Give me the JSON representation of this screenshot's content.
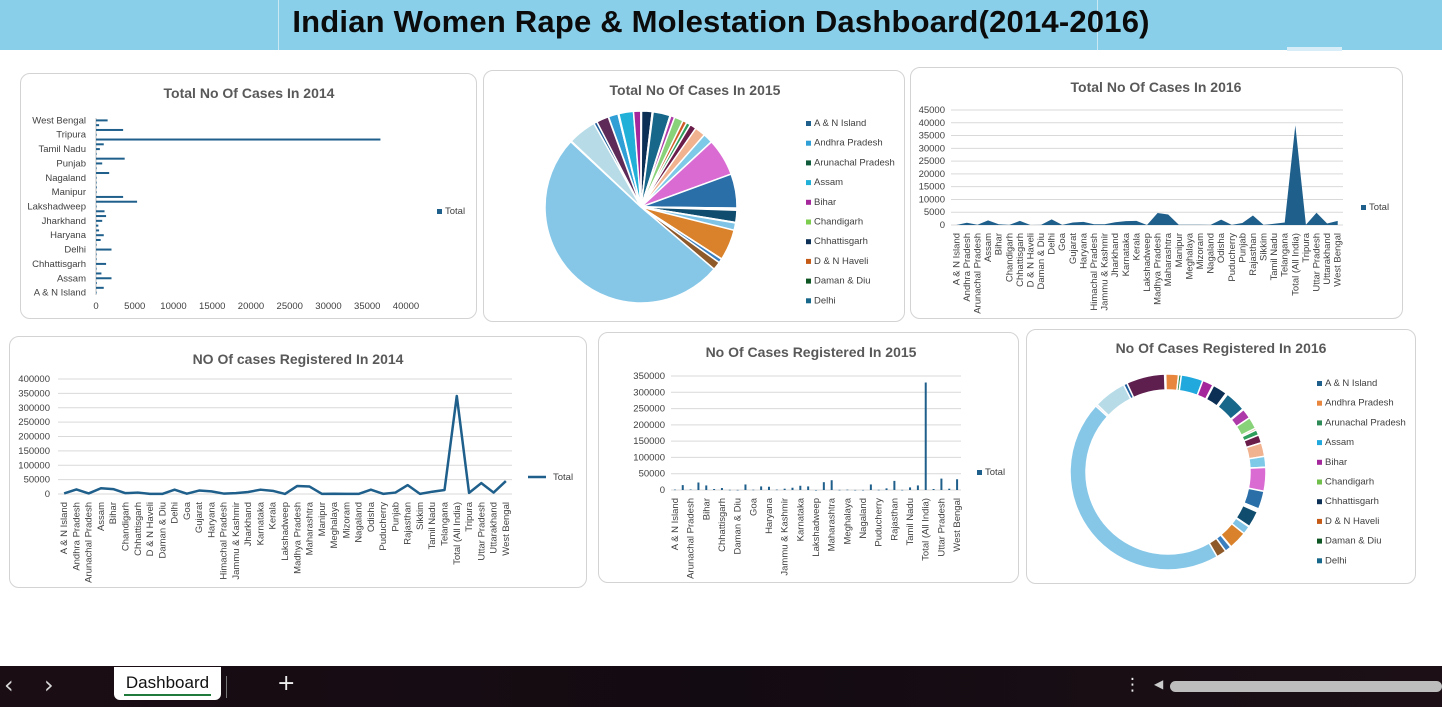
{
  "header": {
    "title": "Indian Women Rape & Molestation Dashboard(2014-2016)"
  },
  "charts": [
    {
      "id": "c2014bar",
      "title": "Total No Of Cases In 2014",
      "type": "bar",
      "categories": [
        "A & N Island",
        "Andhra Pradesh",
        "Arunachal Pradesh",
        "Assam",
        "Bihar",
        "Chandigarh",
        "Chhattisgarh",
        "D & N Haveli",
        "Daman & Diu",
        "Delhi",
        "Goa",
        "Gujarat",
        "Haryana",
        "Himachal Pradesh",
        "Jammu & Kashmir",
        "Jharkhand",
        "Karnataka",
        "Kerala",
        "Lakshadweep",
        "Madhya Pradesh",
        "Maharashtra",
        "Manipur",
        "Meghalaya",
        "Mizoram",
        "Nagaland",
        "Odisha",
        "Puducherry",
        "Punjab",
        "Rajasthan",
        "Sikkim",
        "Tamil Nadu",
        "Telangana",
        "Total (All India)",
        "Tripura",
        "Uttar Pradesh",
        "Uttarakhand",
        "West Bengal"
      ],
      "shown_category_labels": [
        "A & N Island",
        "Assam",
        "Chhattisgarh",
        "Delhi",
        "Haryana",
        "Jharkhand",
        "Lakshadweep",
        "Manipur",
        "Nagaland",
        "Punjab",
        "Tamil Nadu",
        "Tripura",
        "West Bengal"
      ],
      "values": [
        60,
        1000,
        100,
        2000,
        700,
        70,
        1300,
        40,
        40,
        2000,
        60,
        600,
        1000,
        400,
        300,
        800,
        1300,
        1100,
        5,
        5300,
        3500,
        40,
        100,
        80,
        20,
        1700,
        50,
        800,
        3700,
        30,
        500,
        1000,
        36700,
        80,
        3500,
        400,
        1500
      ],
      "xticks": [
        0,
        5000,
        10000,
        15000,
        20000,
        25000,
        30000,
        35000,
        40000
      ],
      "xlim": [
        0,
        40000
      ],
      "legend": "Total",
      "legend_position": "right",
      "color": "#1f5f8b"
    },
    {
      "id": "c2015pie",
      "title": "Total No Of Cases In 2015",
      "type": "pie",
      "values": [
        40,
        1200,
        100,
        1800,
        900,
        80,
        1300,
        60,
        50,
        2100,
        90,
        500,
        1100,
        500,
        500,
        800,
        1300,
        1200,
        5,
        4600,
        4200,
        40,
        100,
        80,
        30,
        1500,
        60,
        900,
        3800,
        30,
        500,
        1000,
        37000,
        80,
        3500,
        400,
        1500
      ],
      "legend_entries": [
        "A & N Island",
        "Andhra Pradesh",
        "Arunachal Pradesh",
        "Assam",
        "Bihar",
        "Chandigarh",
        "Chhattisgarh",
        "D & N Haveli",
        "Daman & Diu",
        "Delhi"
      ],
      "colors": [
        "#1f5f8b",
        "#2f9fd6",
        "#0f5a3a",
        "#21b0d8",
        "#a4279b",
        "#7ccc4d",
        "#0b2f55",
        "#c45a16",
        "#0d5624",
        "#16678a",
        "#e8a17c",
        "#ad3aa8",
        "#88d27a",
        "#cf5b26",
        "#2e9e5c",
        "#6b1d4a",
        "#f0b28f",
        "#7ec9e8",
        "#135c2b",
        "#d96bd2",
        "#2a6fa8",
        "#4ab3d4",
        "#1c4e7a",
        "#c99360",
        "#5dbb6a",
        "#0f4c6e",
        "#a24d9c",
        "#7fc4e6",
        "#d9822b",
        "#245f3c",
        "#3a7fbf",
        "#8f5a2a",
        "#86c7e8",
        "#c7b4e0",
        "#b7dce8",
        "#205f9b",
        "#5e2a58"
      ],
      "legend_position": "right"
    },
    {
      "id": "c2016area",
      "title": "Total No Of Cases In 2016",
      "type": "area",
      "categories": [
        "A & N Island",
        "Andhra Pradesh",
        "Arunachal Pradesh",
        "Assam",
        "Bihar",
        "Chandigarh",
        "Chhattisgarh",
        "D & N Haveli",
        "Daman & Diu",
        "Delhi",
        "Goa",
        "Gujarat",
        "Haryana",
        "Himachal Pradesh",
        "Jammu & Kashmir",
        "Jharkhand",
        "Karnataka",
        "Kerala",
        "Lakshadweep",
        "Madhya Pradesh",
        "Maharashtra",
        "Manipur",
        "Meghalaya",
        "Mizoram",
        "Nagaland",
        "Odisha",
        "Puducherry",
        "Punjab",
        "Rajasthan",
        "Sikkim",
        "Tamil Nadu",
        "Telangana",
        "Total (All India)",
        "Tripura",
        "Uttar Pradesh",
        "Uttarakhand",
        "West Bengal"
      ],
      "values": [
        20,
        900,
        100,
        1800,
        300,
        70,
        1600,
        20,
        30,
        2200,
        40,
        1000,
        1200,
        300,
        300,
        1100,
        1500,
        1600,
        0,
        4700,
        4100,
        100,
        100,
        80,
        30,
        2100,
        50,
        800,
        3700,
        30,
        500,
        1000,
        39000,
        100,
        4800,
        600,
        1600
      ],
      "yticks": [
        0,
        5000,
        10000,
        15000,
        20000,
        25000,
        30000,
        35000,
        40000,
        45000
      ],
      "ylim": [
        0,
        45000
      ],
      "legend": "Total",
      "legend_position": "right",
      "color": "#1f5f8b"
    },
    {
      "id": "r2014line",
      "title": "NO Of cases Registered In 2014",
      "type": "line",
      "categories": [
        "A & N Island",
        "Andhra Pradesh",
        "Arunachal Pradesh",
        "Assam",
        "Bihar",
        "Chandigarh",
        "Chhattisgarh",
        "D & N Haveli",
        "Daman & Diu",
        "Delhi",
        "Goa",
        "Gujarat",
        "Haryana",
        "Himachal Pradesh",
        "Jammu & Kashmir",
        "Jharkhand",
        "Karnataka",
        "Kerala",
        "Lakshadweep",
        "Madhya Pradesh",
        "Maharashtra",
        "Manipur",
        "Meghalaya",
        "Mizoram",
        "Nagaland",
        "Odisha",
        "Puducherry",
        "Punjab",
        "Rajasthan",
        "Sikkim",
        "Tamil Nadu",
        "Telangana",
        "Total (All India)",
        "Tripura",
        "Uttar Pradesh",
        "Uttarakhand",
        "West Bengal"
      ],
      "values": [
        2000,
        16000,
        2000,
        20000,
        17000,
        3000,
        5000,
        500,
        300,
        15000,
        1000,
        12000,
        9000,
        1500,
        3000,
        7000,
        15000,
        11000,
        100,
        28000,
        26000,
        500,
        900,
        300,
        300,
        15000,
        500,
        5000,
        31000,
        400,
        8000,
        14000,
        341000,
        4000,
        38000,
        5000,
        45000
      ],
      "yticks": [
        0,
        50000,
        100000,
        150000,
        200000,
        250000,
        300000,
        350000,
        400000
      ],
      "ylim": [
        0,
        400000
      ],
      "legend": "Total",
      "legend_position": "right",
      "color": "#1f5f8b"
    },
    {
      "id": "r2015col",
      "title": "No Of Cases Registered In 2015",
      "type": "bar",
      "categories": [
        "A & N Island",
        "Andhra Pradesh",
        "Arunachal Pradesh",
        "Assam",
        "Bihar",
        "Chandigarh",
        "Chhattisgarh",
        "D & N Haveli",
        "Daman & Diu",
        "Delhi",
        "Goa",
        "Gujarat",
        "Haryana",
        "Himachal Pradesh",
        "Jammu & Kashmir",
        "Jharkhand",
        "Karnataka",
        "Kerala",
        "Lakshadweep",
        "Madhya Pradesh",
        "Maharashtra",
        "Manipur",
        "Meghalaya",
        "Mizoram",
        "Nagaland",
        "Odisha",
        "Puducherry",
        "Punjab",
        "Rajasthan",
        "Sikkim",
        "Tamil Nadu",
        "Telangana",
        "Total (All India)",
        "Tripura",
        "Uttar Pradesh",
        "Uttarakhand",
        "West Bengal"
      ],
      "shown_category_labels": [
        "A & N Island",
        "Arunachal Pradesh",
        "Bihar",
        "Chhattisgarh",
        "Daman & Diu",
        "Goa",
        "Haryana",
        "Jammu & Kashmir",
        "Karnataka",
        "Lakshadweep",
        "Maharashtra",
        "Meghalaya",
        "Nagaland",
        "Puducherry",
        "Rajasthan",
        "Tamil Nadu",
        "Total (All India)",
        "Uttar Pradesh",
        "West Bengal"
      ],
      "values": [
        1200,
        15000,
        1500,
        23000,
        14000,
        3000,
        6000,
        600,
        400,
        17000,
        900,
        11000,
        10000,
        1200,
        4000,
        7000,
        13000,
        11000,
        50,
        24000,
        30000,
        500,
        1000,
        300,
        300,
        17000,
        600,
        5000,
        28000,
        400,
        8000,
        14000,
        330000,
        3000,
        35000,
        4000,
        33000
      ],
      "yticks": [
        0,
        50000,
        100000,
        150000,
        200000,
        250000,
        300000,
        350000
      ],
      "ylim": [
        0,
        350000
      ],
      "legend": "Total",
      "legend_position": "right",
      "color": "#1f5f8b"
    },
    {
      "id": "r2016donut",
      "title": "No Of Cases Registered In 2016",
      "type": "pie",
      "values": [
        120,
        1400,
        300,
        2400,
        1200,
        80,
        1600,
        100,
        80,
        2300,
        90,
        1100,
        1300,
        200,
        600,
        900,
        1500,
        1200,
        10,
        2600,
        2000,
        100,
        120,
        80,
        40,
        1800,
        60,
        900,
        2000,
        50,
        700,
        1100,
        30000,
        200,
        3600,
        400,
        4200
      ],
      "legend_entries": [
        "A & N Island",
        "Andhra Pradesh",
        "Arunachal Pradesh",
        "Assam",
        "Bihar",
        "Chandigarh",
        "Chhattisgarh",
        "D & N Haveli",
        "Daman & Diu",
        "Delhi"
      ],
      "colors": [
        "#1f5f8b",
        "#e8863d",
        "#2e8b57",
        "#21a9dd",
        "#a4279b",
        "#6fbf4a",
        "#0b2f55",
        "#c45a16",
        "#0d5624",
        "#16678a",
        "#e8a17c",
        "#ad3aa8",
        "#88d27a",
        "#cf5b26",
        "#2e9e5c",
        "#6b1d4a",
        "#f0b28f",
        "#7ec9e8",
        "#135c2b",
        "#d96bd2",
        "#2a6fa8",
        "#4ab3d4",
        "#1c4e7a",
        "#c99360",
        "#5dbb6a",
        "#0f4c6e",
        "#a24d9c",
        "#7fc4e6",
        "#d9822b",
        "#245f3c",
        "#3a7fbf",
        "#8f5a2a",
        "#86c7e8",
        "#c7b4e0",
        "#b7dce8",
        "#205f9b",
        "#5e1f4e"
      ],
      "legend_position": "right"
    }
  ],
  "chart_data": [
    {
      "ref": "c2014bar"
    },
    {
      "ref": "c2015pie"
    },
    {
      "ref": "c2016area"
    },
    {
      "ref": "r2014line"
    },
    {
      "ref": "r2015col"
    },
    {
      "ref": "r2016donut"
    }
  ],
  "taskbar": {
    "sheet_tab": "Dashboard",
    "add_sheet": "+",
    "prev": "‹",
    "next": "›",
    "more": "⋮",
    "scroll_left": "◀"
  }
}
